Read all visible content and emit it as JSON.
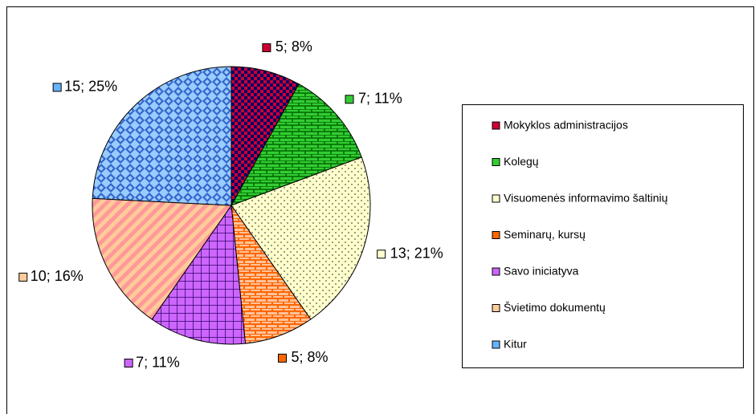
{
  "chart_data": {
    "type": "pie",
    "categories": [
      "Mokyklos administracijos",
      "Kolegų",
      "Visuomenės informavimo šaltinių",
      "Seminarų, kursų",
      "Savo iniciatyva",
      "Švietimo dokumentų",
      "Kitur"
    ],
    "values": [
      5,
      7,
      13,
      5,
      7,
      10,
      15
    ],
    "value_labels": [
      "5; 8%",
      "7; 11%",
      "13; 21%",
      "5; 8%",
      "7; 11%",
      "10; 16%",
      "15; 25%"
    ],
    "colors": [
      "#cc0033",
      "#33cc33",
      "#ffffcc",
      "#ff6600",
      "#cc66ff",
      "#ffcc99",
      "#66b3ff"
    ],
    "legend": "right"
  }
}
